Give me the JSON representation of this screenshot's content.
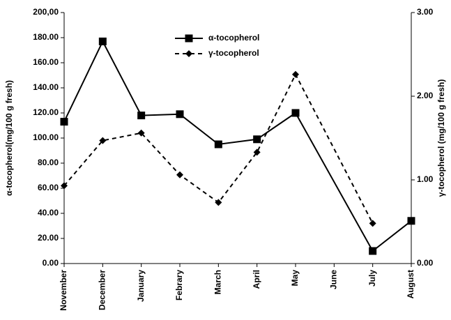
{
  "chart_data": {
    "type": "line",
    "categories": [
      "November",
      "December",
      "January",
      "Febrary",
      "March",
      "April",
      "May",
      "June",
      "July",
      "August"
    ],
    "y_label": "α-tocopherol(mg/100 g fresh)",
    "y2_label": "γ-tocopherol (mg/100 g fresh)",
    "ylim": [
      0,
      200
    ],
    "yticks": [
      {
        "value": 0,
        "label": "0.00"
      },
      {
        "value": 20,
        "label": "20.00"
      },
      {
        "value": 40,
        "label": "40.00"
      },
      {
        "value": 60,
        "label": "60.00"
      },
      {
        "value": 80,
        "label": "80.00"
      },
      {
        "value": 100,
        "label": "100.00"
      },
      {
        "value": 120,
        "label": "120.00"
      },
      {
        "value": 140,
        "label": "140.00"
      },
      {
        "value": 160,
        "label": "160.00"
      },
      {
        "value": 180,
        "label": "180.00"
      },
      {
        "value": 200,
        "label": "200,00"
      }
    ],
    "y2lim": [
      0,
      3
    ],
    "y2ticks": [
      {
        "value": 0,
        "label": "0.00"
      },
      {
        "value": 1,
        "label": "1.00"
      },
      {
        "value": 2,
        "label": "2.00"
      },
      {
        "value": 3,
        "label": "3.00"
      }
    ],
    "grid": false,
    "connect_gaps": true,
    "legend": "upper center",
    "series": [
      {
        "name": "α-tocopherol",
        "color": "#000000",
        "marker": "square",
        "dashed": false,
        "values": [
          113,
          177,
          118,
          119,
          95,
          99,
          120,
          null,
          10,
          34
        ]
      },
      {
        "name": "γ-tocopherol",
        "color": "#000000",
        "marker": "diamond",
        "dashed": true,
        "axis": "y2",
        "values": [
          0.93,
          1.47,
          1.56,
          1.06,
          0.73,
          1.33,
          2.26,
          null,
          0.48,
          null
        ]
      }
    ]
  }
}
